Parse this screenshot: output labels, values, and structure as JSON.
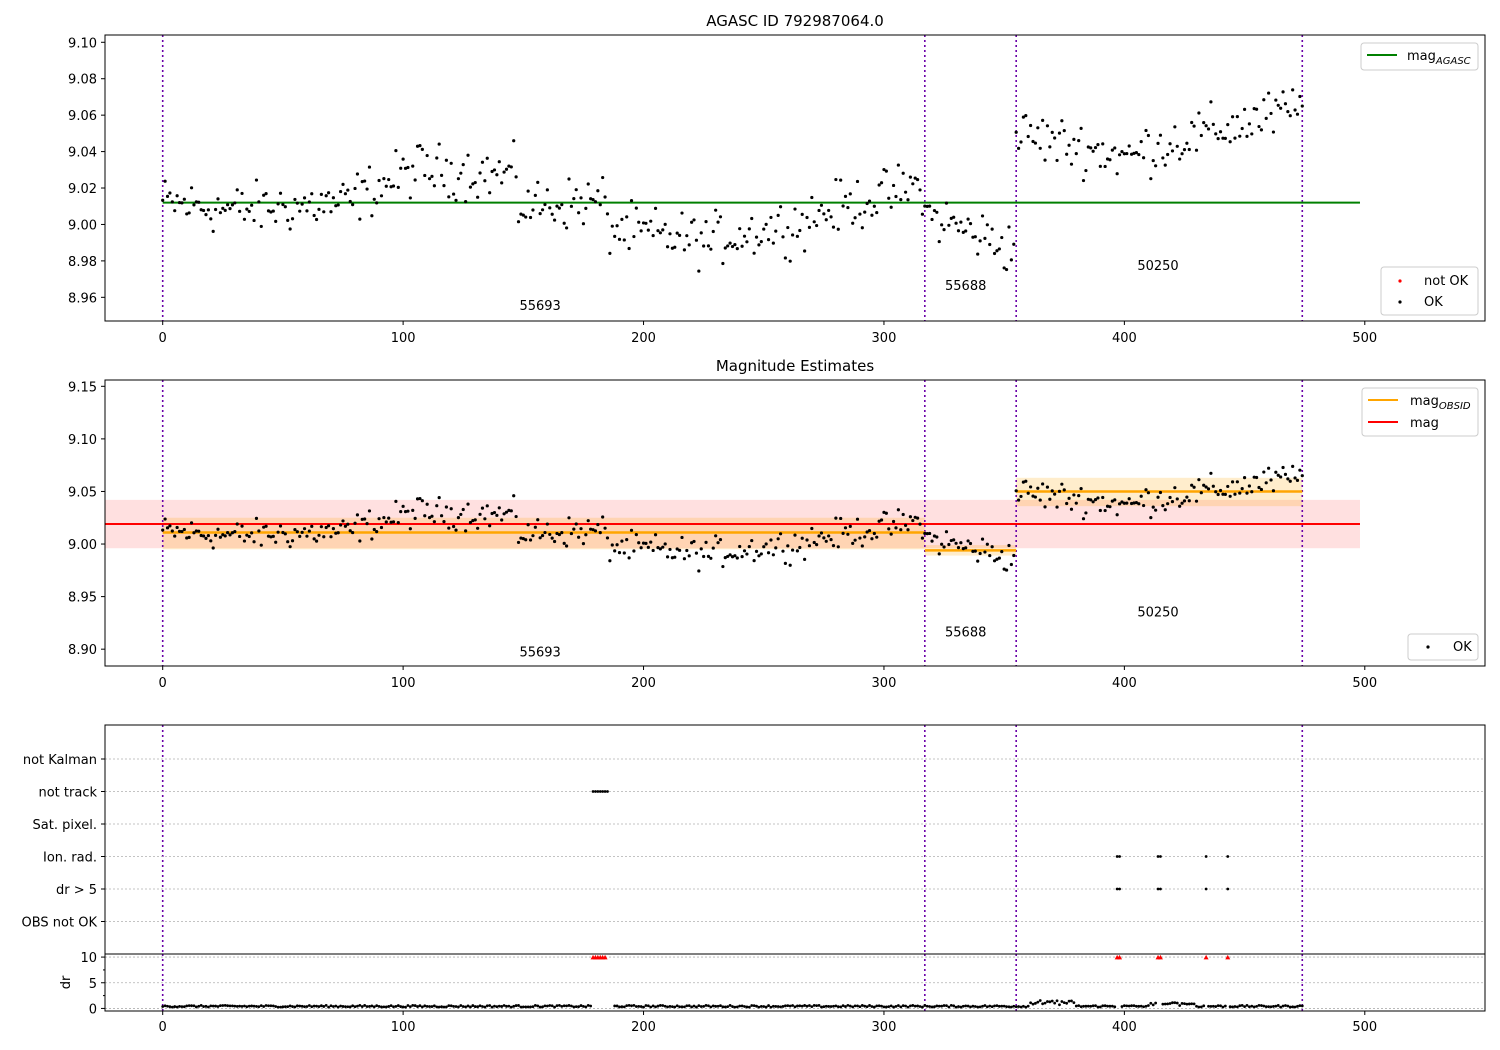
{
  "chart_data": [
    {
      "type": "scatter",
      "title": "AGASC ID 792987064.0",
      "xlim": [
        -24,
        550
      ],
      "ylim": [
        8.947,
        9.104
      ],
      "xticks": [
        0,
        100,
        200,
        300,
        400,
        500
      ],
      "yticks": [
        8.96,
        8.98,
        9.0,
        9.02,
        9.04,
        9.06,
        9.08,
        9.1
      ],
      "ytick_labels": [
        "8.96",
        "8.98",
        "9.00",
        "9.02",
        "9.04",
        "9.06",
        "9.08",
        "9.10"
      ],
      "obs_boundaries": [
        0,
        317,
        355,
        474
      ],
      "obs_labels": [
        {
          "text": "55693",
          "x": 157,
          "y": 8.953
        },
        {
          "text": "55688",
          "x": 334,
          "y": 8.964
        },
        {
          "text": "50250",
          "x": 414,
          "y": 8.975
        }
      ],
      "hlines": [
        {
          "name": "mag_AGASC",
          "y": 9.012,
          "x_range": [
            0,
            498
          ],
          "color": "#008000"
        }
      ],
      "segments": [
        {
          "x0": 0,
          "x1": 30,
          "y0": 9.012,
          "y1": 9.008
        },
        {
          "x0": 30,
          "x1": 80,
          "y0": 9.008,
          "y1": 9.012
        },
        {
          "x0": 80,
          "x1": 108,
          "y0": 9.015,
          "y1": 9.032
        },
        {
          "x0": 108,
          "x1": 148,
          "y0": 9.03,
          "y1": 9.027
        },
        {
          "x0": 148,
          "x1": 185,
          "y0": 9.01,
          "y1": 9.013
        },
        {
          "x0": 185,
          "x1": 230,
          "y0": 8.998,
          "y1": 8.99
        },
        {
          "x0": 230,
          "x1": 270,
          "y0": 8.992,
          "y1": 9.002
        },
        {
          "x0": 270,
          "x1": 317,
          "y0": 9.005,
          "y1": 9.022
        },
        {
          "x0": 317,
          "x1": 355,
          "y0": 9.006,
          "y1": 8.986
        },
        {
          "x0": 355,
          "x1": 405,
          "y0": 9.05,
          "y1": 9.036
        },
        {
          "x0": 405,
          "x1": 474,
          "y0": 9.04,
          "y1": 9.064
        }
      ],
      "legend_top": [
        {
          "label": "mag",
          "sub": "AGASC",
          "color": "#008000"
        }
      ],
      "legend_bottom": [
        {
          "label": "not OK",
          "color": "#ff0000"
        },
        {
          "label": "OK",
          "color": "#000000"
        }
      ]
    },
    {
      "type": "scatter",
      "title": "Magnitude Estimates",
      "xlim": [
        -24,
        550
      ],
      "ylim": [
        8.884,
        9.156
      ],
      "xticks": [
        0,
        100,
        200,
        300,
        400,
        500
      ],
      "yticks": [
        8.9,
        8.95,
        9.0,
        9.05,
        9.1,
        9.15
      ],
      "ytick_labels": [
        "8.90",
        "8.95",
        "9.00",
        "9.05",
        "9.10",
        "9.15"
      ],
      "obs_boundaries": [
        0,
        317,
        355,
        474
      ],
      "obs_labels": [
        {
          "text": "55693",
          "x": 157,
          "y": 8.893
        },
        {
          "text": "55688",
          "x": 334,
          "y": 8.912
        },
        {
          "text": "50250",
          "x": 414,
          "y": 8.931
        }
      ],
      "mag": {
        "value": 9.019,
        "band": [
          8.996,
          9.042
        ],
        "x_range": [
          -24,
          498
        ],
        "color": "#ff0000"
      },
      "mag_obsid": [
        {
          "x": [
            0,
            317
          ],
          "value": 9.011,
          "band": [
            8.995,
            9.025
          ]
        },
        {
          "x": [
            317,
            355
          ],
          "value": 8.994,
          "band": [
            8.989,
            8.999
          ]
        },
        {
          "x": [
            355,
            474
          ],
          "value": 9.05,
          "band": [
            9.036,
            9.063
          ]
        }
      ],
      "legend_top": [
        {
          "label": "mag",
          "sub": "OBSID",
          "color": "#ffa500"
        },
        {
          "label": "mag",
          "sub": "",
          "color": "#ff0000"
        }
      ],
      "legend_bottom": [
        {
          "label": "OK",
          "color": "#000000"
        }
      ]
    },
    {
      "type": "scatter",
      "title": "",
      "xlim": [
        -24,
        550
      ],
      "xticks": [
        0,
        100,
        200,
        300,
        400,
        500
      ],
      "obs_boundaries": [
        0,
        317,
        355,
        474
      ],
      "flag_rows": [
        "not Kalman",
        "not track",
        "Sat. pixel.",
        "Ion. rad.",
        "dr > 5",
        "OBS not OK"
      ],
      "flags": {
        "not track": [
          [
            179,
            185
          ]
        ],
        "Ion. rad.": [
          [
            397,
            398
          ],
          [
            414,
            415
          ],
          [
            434,
            434
          ],
          [
            443,
            443
          ]
        ],
        "dr > 5": [
          [
            397,
            398
          ],
          [
            414,
            415
          ],
          [
            434,
            434
          ],
          [
            443,
            443
          ]
        ]
      },
      "dr": {
        "ylabel": "dr",
        "yticks": [
          0,
          5,
          10
        ],
        "ylim": [
          -0.5,
          10.6
        ],
        "clipped_points": [
          [
            179,
            185
          ],
          [
            397,
            398
          ],
          [
            414,
            415
          ],
          [
            434,
            434
          ],
          [
            443,
            443
          ]
        ],
        "gap": [
          185,
          187
        ]
      }
    }
  ]
}
